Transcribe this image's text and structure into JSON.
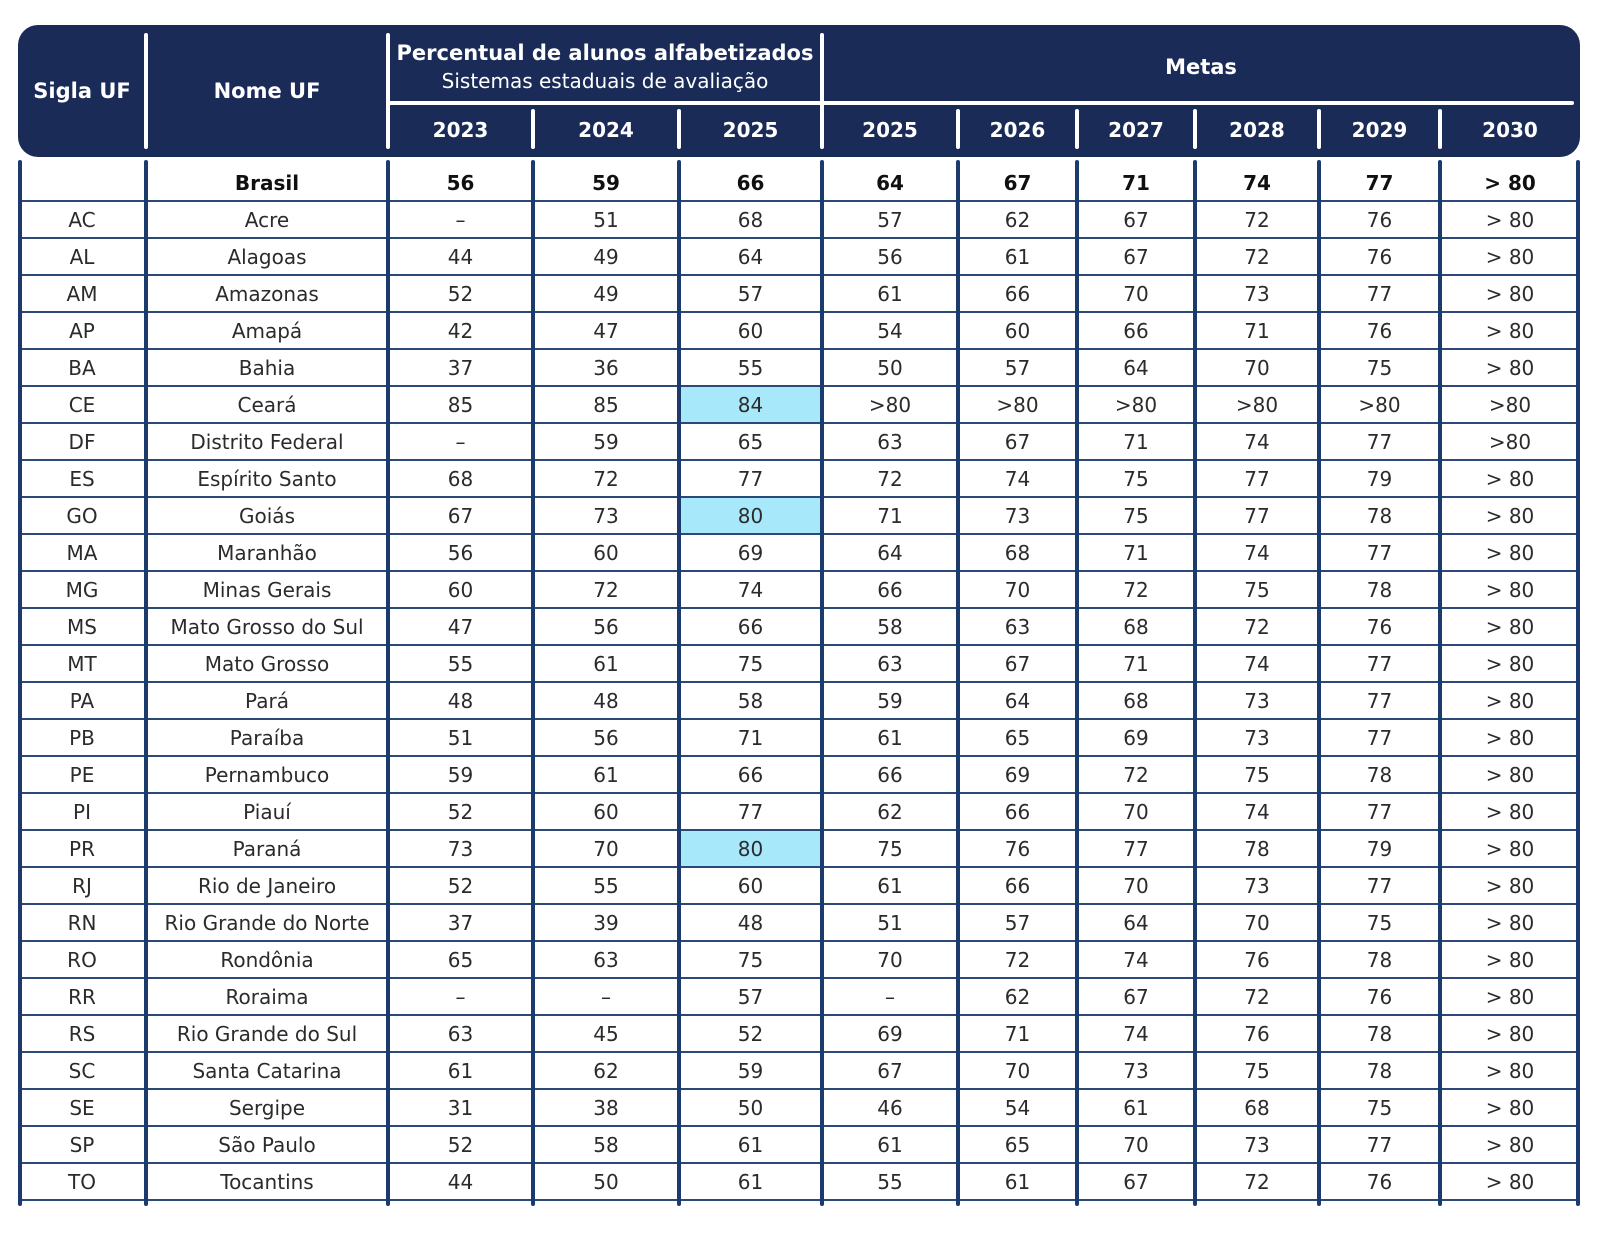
{
  "header": {
    "sigla_uf": "Sigla UF",
    "nome_uf": "Nome UF",
    "group1_title": "Percentual de alunos alfabetizados",
    "group1_subtitle": "Sistemas estaduais de avaliação",
    "group2_title": "Metas",
    "years_pct": [
      "2023",
      "2024",
      "2025"
    ],
    "years_metas": [
      "2025",
      "2026",
      "2027",
      "2028",
      "2029",
      "2030"
    ]
  },
  "colors": {
    "header_bg": "#1a2b58",
    "grid_vertical": "#1d3a6e",
    "grid_horizontal": "#2a4878",
    "highlight_cell": "#a7e9fa",
    "header_text": "#ffffff",
    "body_text": "#2b2b2b"
  },
  "chart_data": {
    "type": "table",
    "title": "Percentual de alunos alfabetizados — Sistemas estaduais de avaliação e Metas",
    "columns": [
      "Sigla UF",
      "Nome UF",
      "2023",
      "2024",
      "2025",
      "Metas 2025",
      "Metas 2026",
      "Metas 2027",
      "Metas 2028",
      "Metas 2029",
      "Metas 2030"
    ],
    "highlight_note": "cells highlighted in cyan in column 2025 (percentual)",
    "rows": [
      {
        "sigla": "",
        "nome": "Brasil",
        "bold": true,
        "values": [
          "56",
          "59",
          "66",
          "64",
          "67",
          "71",
          "74",
          "77",
          "> 80"
        ],
        "highlight": []
      },
      {
        "sigla": "AC",
        "nome": "Acre",
        "bold": false,
        "values": [
          "–",
          "51",
          "68",
          "57",
          "62",
          "67",
          "72",
          "76",
          "> 80"
        ],
        "highlight": []
      },
      {
        "sigla": "AL",
        "nome": "Alagoas",
        "bold": false,
        "values": [
          "44",
          "49",
          "64",
          "56",
          "61",
          "67",
          "72",
          "76",
          "> 80"
        ],
        "highlight": []
      },
      {
        "sigla": "AM",
        "nome": "Amazonas",
        "bold": false,
        "values": [
          "52",
          "49",
          "57",
          "61",
          "66",
          "70",
          "73",
          "77",
          "> 80"
        ],
        "highlight": []
      },
      {
        "sigla": "AP",
        "nome": "Amapá",
        "bold": false,
        "values": [
          "42",
          "47",
          "60",
          "54",
          "60",
          "66",
          "71",
          "76",
          "> 80"
        ],
        "highlight": []
      },
      {
        "sigla": "BA",
        "nome": "Bahia",
        "bold": false,
        "values": [
          "37",
          "36",
          "55",
          "50",
          "57",
          "64",
          "70",
          "75",
          "> 80"
        ],
        "highlight": []
      },
      {
        "sigla": "CE",
        "nome": "Ceará",
        "bold": false,
        "values": [
          "85",
          "85",
          "84",
          ">80",
          ">80",
          ">80",
          ">80",
          ">80",
          ">80"
        ],
        "highlight": [
          2
        ]
      },
      {
        "sigla": "DF",
        "nome": "Distrito Federal",
        "bold": false,
        "values": [
          "–",
          "59",
          "65",
          "63",
          "67",
          "71",
          "74",
          "77",
          ">80"
        ],
        "highlight": []
      },
      {
        "sigla": "ES",
        "nome": "Espírito Santo",
        "bold": false,
        "values": [
          "68",
          "72",
          "77",
          "72",
          "74",
          "75",
          "77",
          "79",
          "> 80"
        ],
        "highlight": []
      },
      {
        "sigla": "GO",
        "nome": "Goiás",
        "bold": false,
        "values": [
          "67",
          "73",
          "80",
          "71",
          "73",
          "75",
          "77",
          "78",
          "> 80"
        ],
        "highlight": [
          2
        ]
      },
      {
        "sigla": "MA",
        "nome": "Maranhão",
        "bold": false,
        "values": [
          "56",
          "60",
          "69",
          "64",
          "68",
          "71",
          "74",
          "77",
          "> 80"
        ],
        "highlight": []
      },
      {
        "sigla": "MG",
        "nome": "Minas Gerais",
        "bold": false,
        "values": [
          "60",
          "72",
          "74",
          "66",
          "70",
          "72",
          "75",
          "78",
          "> 80"
        ],
        "highlight": []
      },
      {
        "sigla": "MS",
        "nome": "Mato Grosso do Sul",
        "bold": false,
        "values": [
          "47",
          "56",
          "66",
          "58",
          "63",
          "68",
          "72",
          "76",
          "> 80"
        ],
        "highlight": []
      },
      {
        "sigla": "MT",
        "nome": "Mato Grosso",
        "bold": false,
        "values": [
          "55",
          "61",
          "75",
          "63",
          "67",
          "71",
          "74",
          "77",
          "> 80"
        ],
        "highlight": []
      },
      {
        "sigla": "PA",
        "nome": "Pará",
        "bold": false,
        "values": [
          "48",
          "48",
          "58",
          "59",
          "64",
          "68",
          "73",
          "77",
          "> 80"
        ],
        "highlight": []
      },
      {
        "sigla": "PB",
        "nome": "Paraíba",
        "bold": false,
        "values": [
          "51",
          "56",
          "71",
          "61",
          "65",
          "69",
          "73",
          "77",
          "> 80"
        ],
        "highlight": []
      },
      {
        "sigla": "PE",
        "nome": "Pernambuco",
        "bold": false,
        "values": [
          "59",
          "61",
          "66",
          "66",
          "69",
          "72",
          "75",
          "78",
          "> 80"
        ],
        "highlight": []
      },
      {
        "sigla": "PI",
        "nome": "Piauí",
        "bold": false,
        "values": [
          "52",
          "60",
          "77",
          "62",
          "66",
          "70",
          "74",
          "77",
          "> 80"
        ],
        "highlight": []
      },
      {
        "sigla": "PR",
        "nome": "Paraná",
        "bold": false,
        "values": [
          "73",
          "70",
          "80",
          "75",
          "76",
          "77",
          "78",
          "79",
          "> 80"
        ],
        "highlight": [
          2
        ]
      },
      {
        "sigla": "RJ",
        "nome": "Rio de Janeiro",
        "bold": false,
        "values": [
          "52",
          "55",
          "60",
          "61",
          "66",
          "70",
          "73",
          "77",
          "> 80"
        ],
        "highlight": []
      },
      {
        "sigla": "RN",
        "nome": "Rio Grande do Norte",
        "bold": false,
        "values": [
          "37",
          "39",
          "48",
          "51",
          "57",
          "64",
          "70",
          "75",
          "> 80"
        ],
        "highlight": []
      },
      {
        "sigla": "RO",
        "nome": "Rondônia",
        "bold": false,
        "values": [
          "65",
          "63",
          "75",
          "70",
          "72",
          "74",
          "76",
          "78",
          "> 80"
        ],
        "highlight": []
      },
      {
        "sigla": "RR",
        "nome": "Roraima",
        "bold": false,
        "values": [
          "–",
          "–",
          "57",
          "–",
          "62",
          "67",
          "72",
          "76",
          "> 80"
        ],
        "highlight": []
      },
      {
        "sigla": "RS",
        "nome": "Rio Grande do Sul",
        "bold": false,
        "values": [
          "63",
          "45",
          "52",
          "69",
          "71",
          "74",
          "76",
          "78",
          "> 80"
        ],
        "highlight": []
      },
      {
        "sigla": "SC",
        "nome": "Santa Catarina",
        "bold": false,
        "values": [
          "61",
          "62",
          "59",
          "67",
          "70",
          "73",
          "75",
          "78",
          "> 80"
        ],
        "highlight": []
      },
      {
        "sigla": "SE",
        "nome": "Sergipe",
        "bold": false,
        "values": [
          "31",
          "38",
          "50",
          "46",
          "54",
          "61",
          "68",
          "75",
          "> 80"
        ],
        "highlight": []
      },
      {
        "sigla": "SP",
        "nome": "São Paulo",
        "bold": false,
        "values": [
          "52",
          "58",
          "61",
          "61",
          "65",
          "70",
          "73",
          "77",
          "> 80"
        ],
        "highlight": []
      },
      {
        "sigla": "TO",
        "nome": "Tocantins",
        "bold": false,
        "values": [
          "44",
          "50",
          "61",
          "55",
          "61",
          "67",
          "72",
          "76",
          "> 80"
        ],
        "highlight": []
      }
    ]
  }
}
